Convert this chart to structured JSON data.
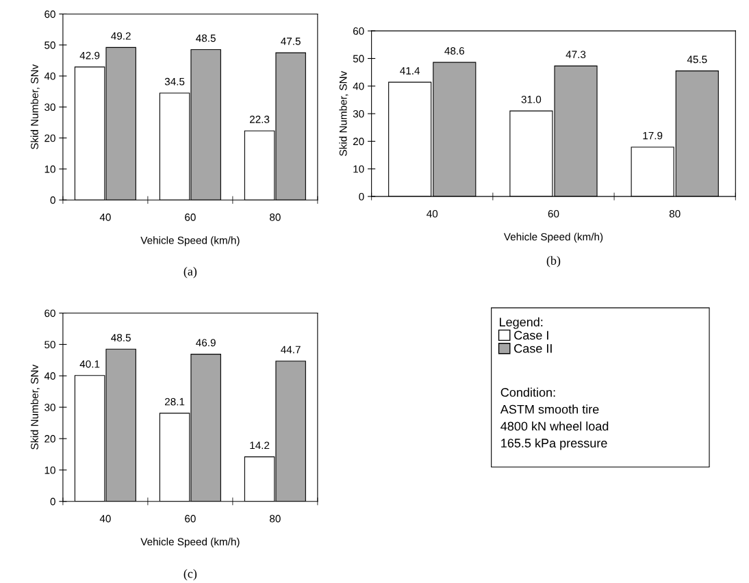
{
  "chart_data": [
    {
      "type": "bar",
      "subtitle": "(a)",
      "xlabel": "Vehicle Speed (km/h)",
      "ylabel": "Skid Number, SNv",
      "categories": [
        "40",
        "60",
        "80"
      ],
      "ylim": [
        0,
        60
      ],
      "yticks": [
        0,
        10,
        20,
        30,
        40,
        50,
        60
      ],
      "data_labels": true,
      "grid": false,
      "legend": false,
      "series": [
        {
          "color": "#ffffff",
          "values": [
            42.9,
            34.5,
            22.3
          ]
        },
        {
          "color": "#a6a6a6",
          "values": [
            49.2,
            48.5,
            47.5
          ]
        }
      ]
    },
    {
      "type": "bar",
      "subtitle": "(b)",
      "xlabel": "Vehicle Speed (km/h)",
      "ylabel": "Skid Number, SNv",
      "categories": [
        "40",
        "60",
        "80"
      ],
      "ylim": [
        0,
        60
      ],
      "yticks": [
        0,
        10,
        20,
        30,
        40,
        50,
        60
      ],
      "data_labels": true,
      "grid": false,
      "legend": false,
      "series": [
        {
          "color": "#ffffff",
          "values": [
            41.4,
            31.0,
            17.9
          ],
          "value_labels": [
            "41.4",
            "31.0",
            "17.9"
          ]
        },
        {
          "color": "#a6a6a6",
          "values": [
            48.6,
            47.3,
            45.5
          ]
        }
      ]
    },
    {
      "type": "bar",
      "subtitle": "(c)",
      "xlabel": "Vehicle Speed (km/h)",
      "ylabel": "Skid Number, SNv",
      "categories": [
        "40",
        "60",
        "80"
      ],
      "ylim": [
        0,
        60
      ],
      "yticks": [
        0,
        10,
        20,
        30,
        40,
        50,
        60
      ],
      "data_labels": true,
      "grid": false,
      "legend": "right",
      "legend_title": "Legend:",
      "annotations": [
        "Condition:",
        "ASTM smooth tire",
        "4800 kN wheel load",
        "165.5 kPa pressure"
      ],
      "series": [
        {
          "name": "Case I",
          "color": "#ffffff",
          "values": [
            40.1,
            28.1,
            14.2
          ]
        },
        {
          "name": "Case II",
          "color": "#a6a6a6",
          "values": [
            48.5,
            46.9,
            44.7
          ]
        }
      ]
    }
  ]
}
